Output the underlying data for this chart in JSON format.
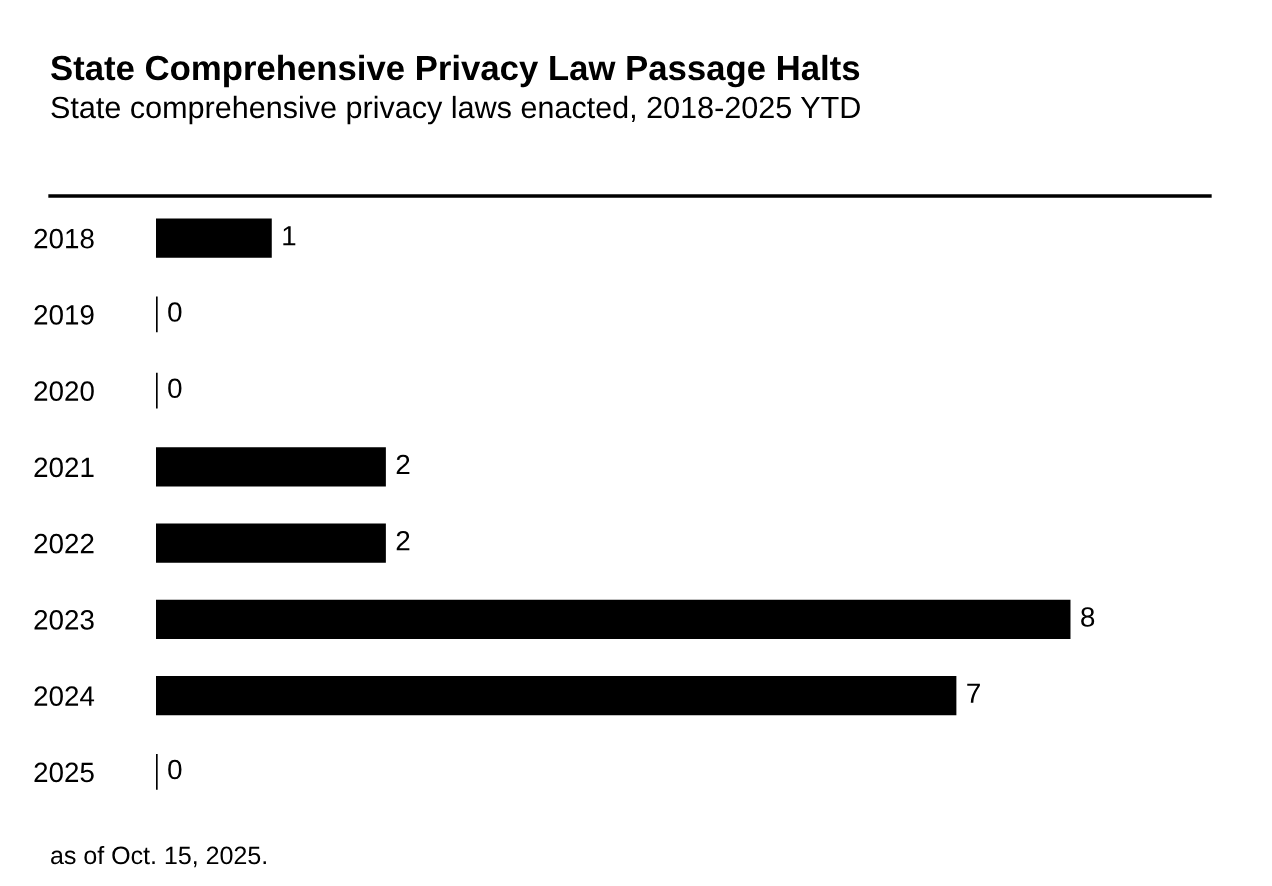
{
  "chart_data": {
    "type": "bar",
    "orientation": "horizontal",
    "title": "State Comprehensive Privacy Law Passage Halts",
    "subtitle": "State comprehensive privacy laws enacted, 2018-2025 YTD",
    "categories": [
      "2018",
      "2019",
      "2020",
      "2021",
      "2022",
      "2023",
      "2024",
      "2025"
    ],
    "values": [
      1,
      0,
      0,
      2,
      2,
      8,
      7,
      0
    ],
    "color": "#000000",
    "data_labels": true,
    "grid": false,
    "legend": false,
    "annotations": [
      "as of Oct. 15, 2025."
    ]
  }
}
